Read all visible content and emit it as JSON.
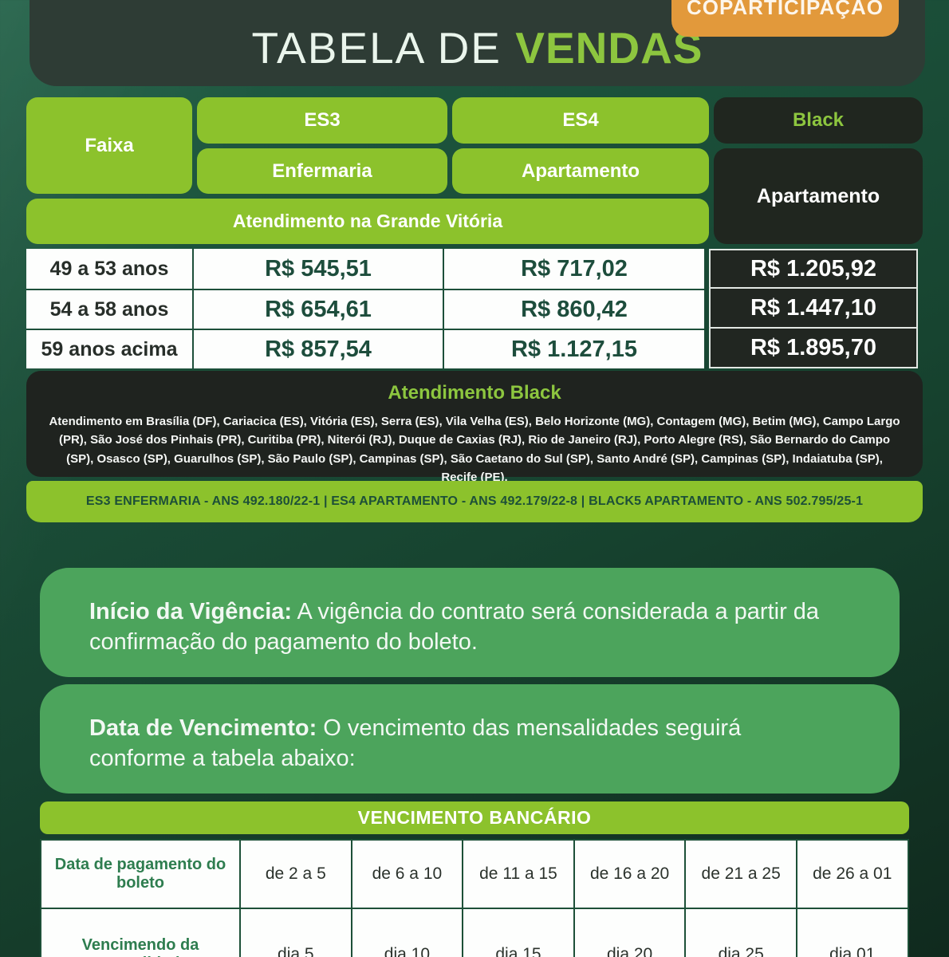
{
  "colors": {
    "accent_green": "#8cc22c",
    "bright_green_text": "#8dc63f",
    "dark_box": "#20261f",
    "header_box": "#2e3c35",
    "card_green": "#4ca45c",
    "badge_orange": "#e2993b",
    "price_text_green": "#1d4d3c",
    "page_bg_dark_green": "#174430"
  },
  "badge": {
    "label": "COPARTICIPAÇÃO"
  },
  "header": {
    "title_regular": "TABELA DE",
    "title_accent": "VENDAS"
  },
  "plans_table": {
    "faixa_label": "Faixa",
    "columns": [
      {
        "plan": "ES3",
        "room": "Enfermaria"
      },
      {
        "plan": "ES4",
        "room": "Apartamento"
      },
      {
        "plan": "Black",
        "room": "Apartamento"
      }
    ],
    "region_banner": "Atendimento na Grande Vitória",
    "rows": [
      {
        "faixa": "49 a 53 anos",
        "es3": "R$ 545,51",
        "es4": "R$ 717,02",
        "black": "R$ 1.205,92"
      },
      {
        "faixa": "54 a 58 anos",
        "es3": "R$ 654,61",
        "es4": "R$ 860,42",
        "black": "R$ 1.447,10"
      },
      {
        "faixa": "59 anos acima",
        "es3": "R$ 857,54",
        "es4": "R$ 1.127,15",
        "black": "R$ 1.895,70"
      }
    ]
  },
  "black_coverage": {
    "title": "Atendimento Black",
    "text": "Atendimento em Brasília (DF), Cariacica (ES), Vitória (ES), Serra (ES), Vila Velha (ES), Belo Horizonte (MG), Contagem (MG), Betim (MG), Campo Largo (PR), São José dos Pinhais (PR), Curitiba (PR), Niterói (RJ), Duque de Caxias (RJ), Rio de Janeiro (RJ), Porto Alegre (RS), São Bernardo do Campo (SP), Osasco (SP), Guarulhos (SP), São Paulo (SP), Campinas (SP), São Caetano do Sul (SP), Santo André (SP), Campinas (SP), Indaiatuba (SP), Recife (PE)."
  },
  "ans_bar": {
    "text": "ES3 ENFERMARIA - ANS 492.180/22-1 | ES4 APARTAMENTO - ANS 492.179/22-8 | BLACK5 APARTAMENTO - ANS 502.795/25-1"
  },
  "notes": [
    {
      "lead": "Início da Vigência:",
      "body": " A vigência do contrato será considerada a partir da confirmação do pagamento do boleto."
    },
    {
      "lead": "Data de Vencimento:",
      "body": " O vencimento das mensalidades seguirá conforme a tabela abaixo:"
    }
  ],
  "due_table": {
    "title": "VENCIMENTO BANCÁRIO",
    "row1_label": "Data de pagamento do boleto",
    "row1_values": [
      "de 2 a 5",
      "de 6 a 10",
      "de 11 a 15",
      "de 16 a 20",
      "de 21 a 25",
      "de 26 a 01"
    ],
    "row2_label": "Vencimendo da mensalidade",
    "row2_values": [
      "dia 5",
      "dia 10",
      "dia 15",
      "dia 20",
      "dia 25",
      "dia 01"
    ]
  }
}
